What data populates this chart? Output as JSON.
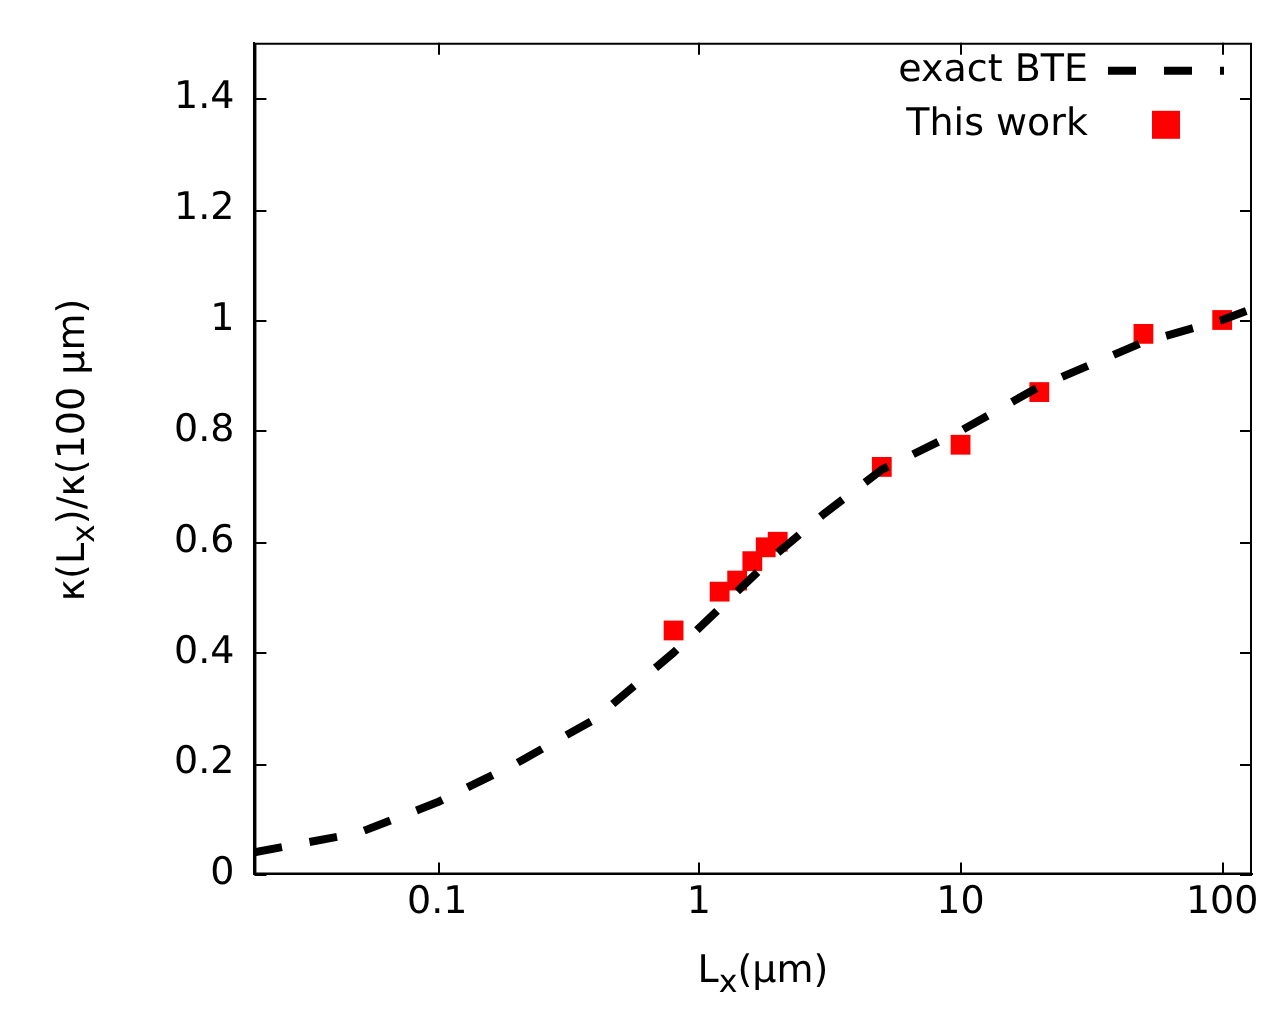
{
  "chart_data": {
    "type": "scatter",
    "xlabel": "L$_{x}$(μm)",
    "ylabel": "κ(L$_{x}$)/κ(100 μm)",
    "log": "x",
    "xlim": [
      0.02,
      130
    ],
    "xticks": [
      0.1,
      1,
      10,
      100
    ],
    "ylim": [
      0,
      1.5
    ],
    "yticks": [
      0,
      0.2,
      0.4,
      0.6,
      0.8,
      1,
      1.2,
      1.4
    ],
    "grid": false,
    "legend": "top right",
    "series": [
      {
        "name": "exact BTE",
        "type": "line",
        "color": "#000000",
        "line_style": "dashed",
        "marker": "none",
        "x": [
          0.02,
          0.05,
          0.1,
          0.2,
          0.4,
          0.8,
          1.2,
          2,
          3,
          5,
          10,
          20,
          50,
          100,
          130
        ],
        "values": [
          0.04,
          0.075,
          0.13,
          0.2,
          0.28,
          0.4,
          0.48,
          0.58,
          0.65,
          0.73,
          0.8,
          0.88,
          0.96,
          1.0,
          1.02
        ]
      },
      {
        "name": "This work",
        "type": "scatter",
        "color": "#ff0000",
        "marker": "square",
        "x": [
          0.8,
          1.2,
          1.4,
          1.6,
          1.8,
          2,
          5,
          10,
          20,
          50,
          100
        ],
        "values": [
          0.44,
          0.51,
          0.53,
          0.565,
          0.59,
          0.6,
          0.735,
          0.775,
          0.87,
          0.975,
          1.0
        ]
      }
    ]
  }
}
